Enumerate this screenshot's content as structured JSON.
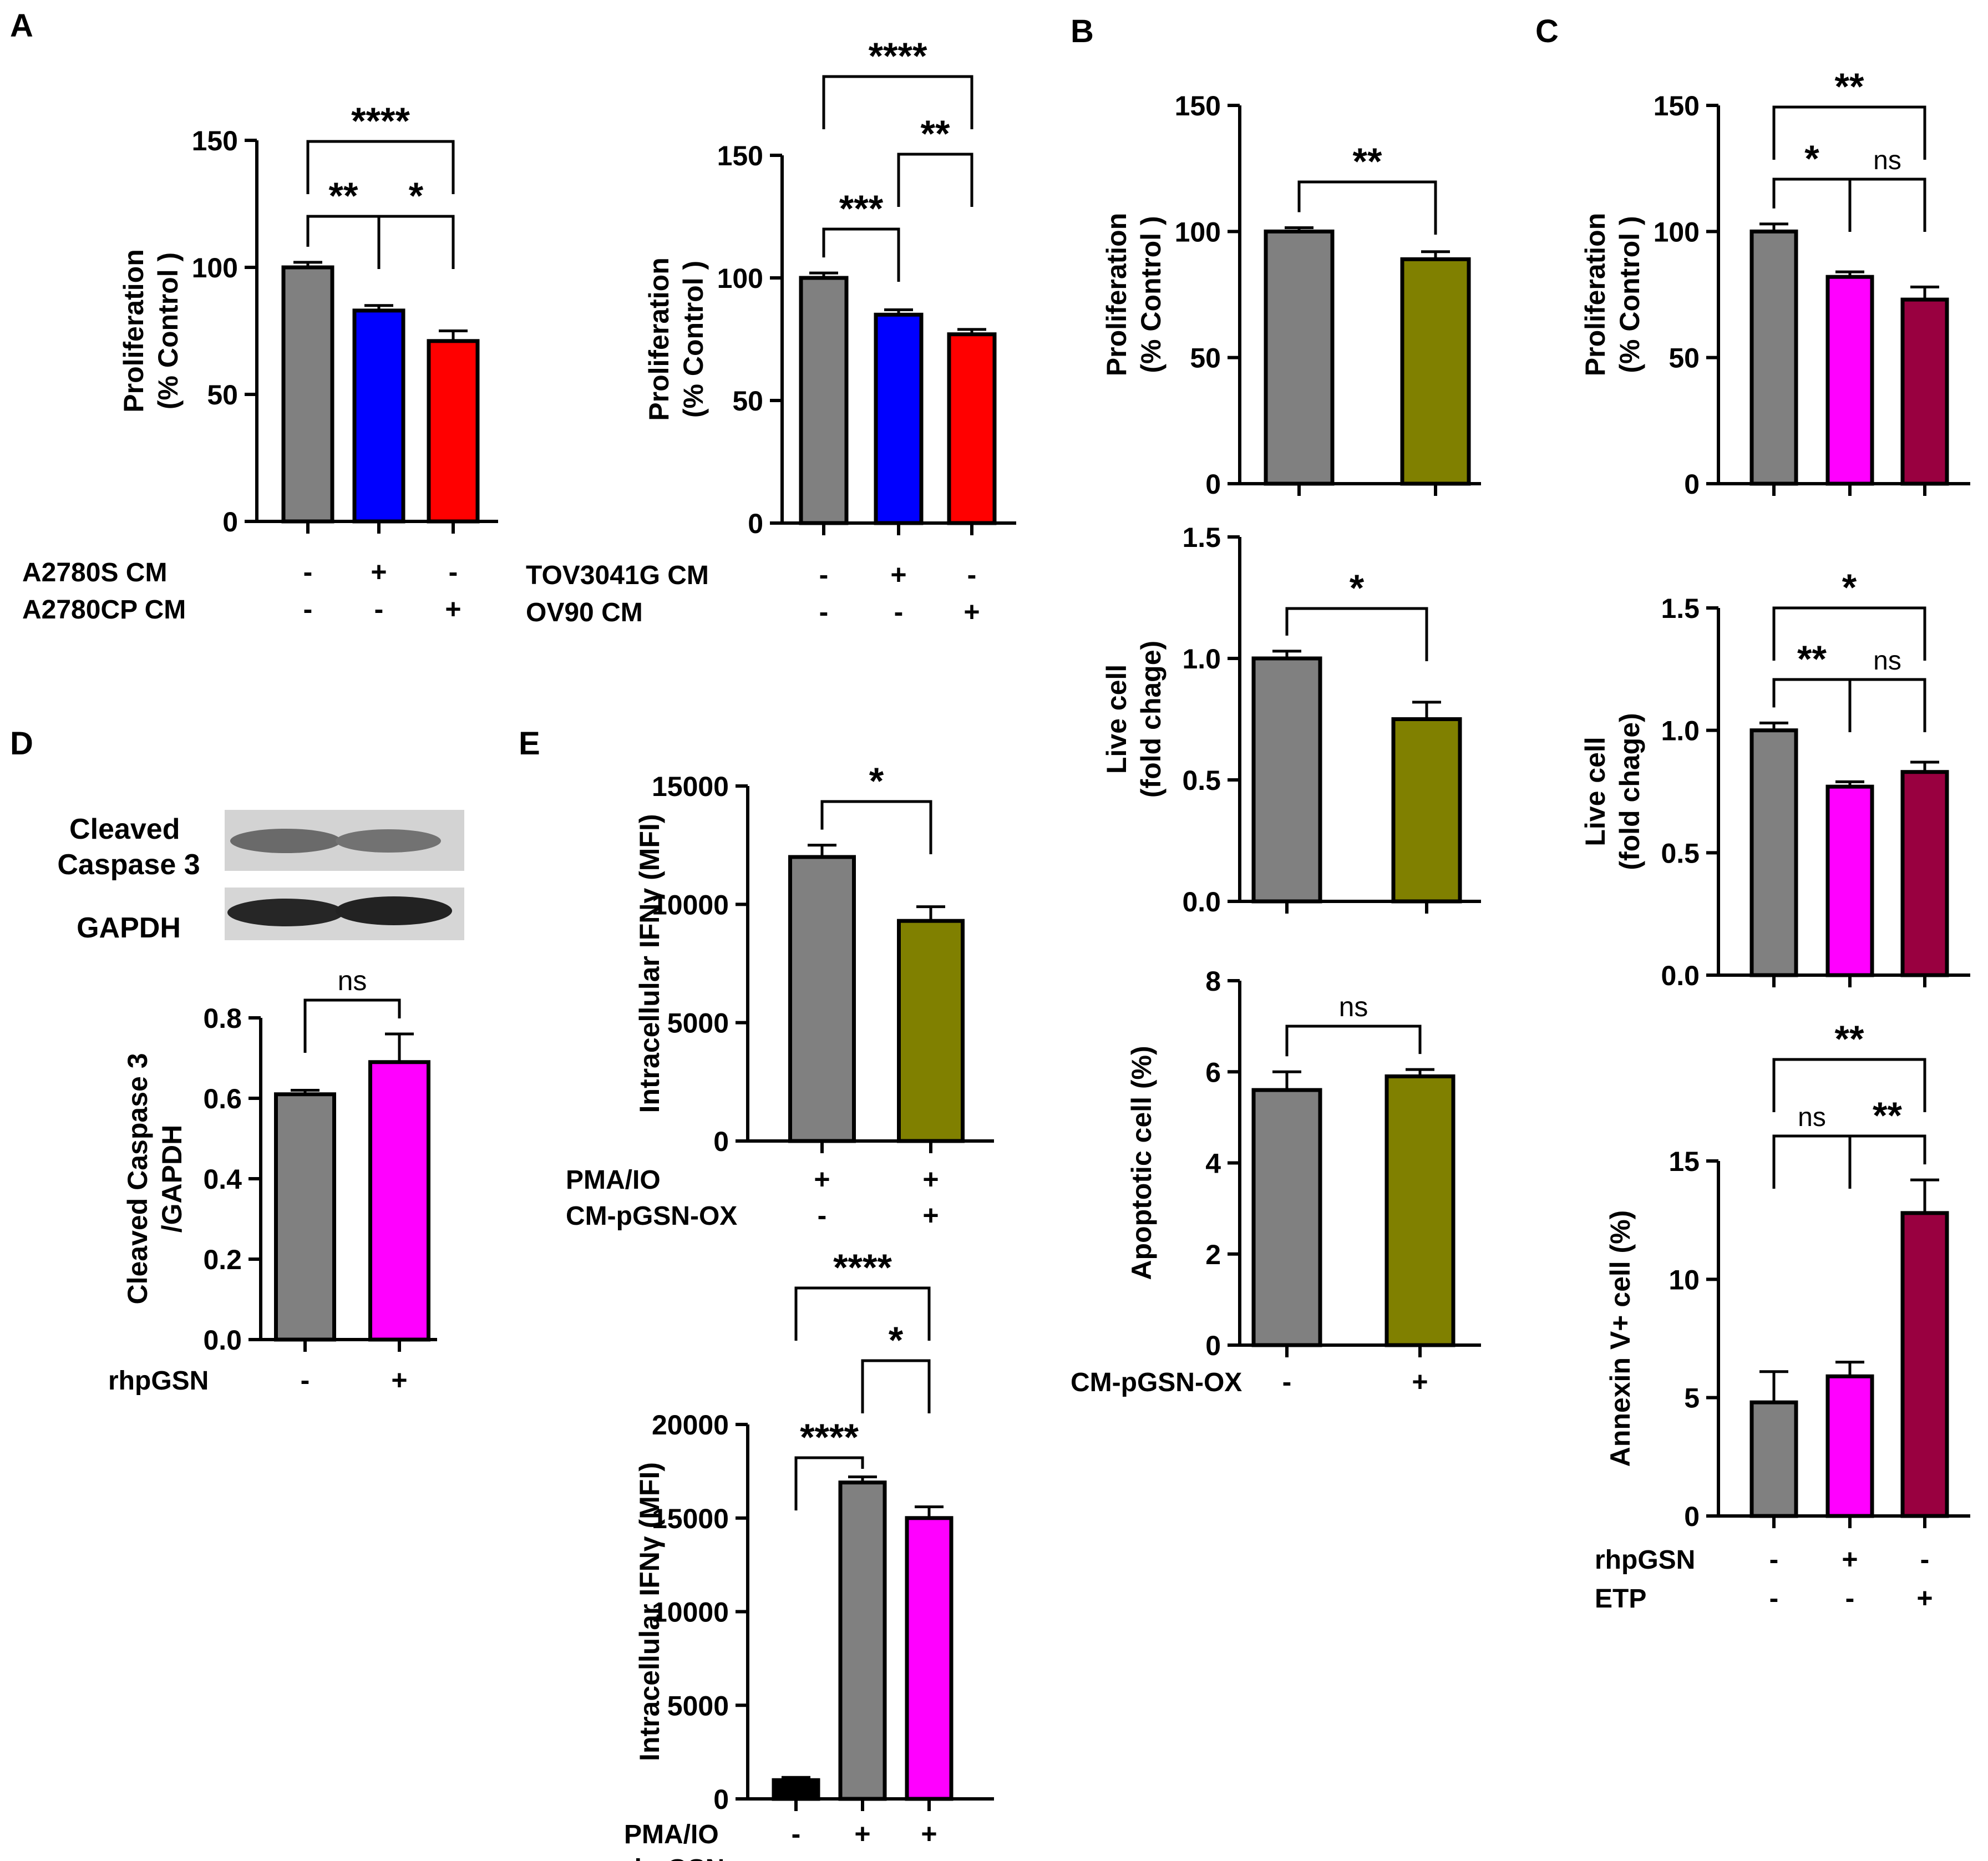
{
  "panel_letters": [
    "A",
    "B",
    "C",
    "D",
    "E"
  ],
  "blot": {
    "labels": [
      "Cleaved\nCaspase 3",
      "GAPDH"
    ]
  },
  "chart_data": [
    {
      "id": "A1",
      "panel": "A",
      "type": "bar",
      "ylabel": "Proliferation\n(% Control )",
      "ylim": [
        0,
        150
      ],
      "yticks": [
        0,
        50,
        100,
        150
      ],
      "ytick_labels": [
        "0",
        "50",
        "100",
        "150"
      ],
      "values": [
        100,
        83,
        71
      ],
      "errors": [
        2,
        2,
        4
      ],
      "colors": [
        "#808080",
        "#0000ff",
        "#ff0000"
      ],
      "conditions": [
        {
          "label": "A2780S CM",
          "signs": [
            "-",
            "+",
            "-"
          ]
        },
        {
          "label": "A2780CP CM",
          "signs": [
            "-",
            "-",
            "+"
          ]
        }
      ],
      "significance": [
        {
          "from": 0,
          "to": 1,
          "label": "**"
        },
        {
          "from": 1,
          "to": 2,
          "label": "*"
        },
        {
          "from": 0,
          "to": 2,
          "label": "****"
        }
      ]
    },
    {
      "id": "A2",
      "panel": "A",
      "type": "bar",
      "ylabel": "Proliferation\n(% Control )",
      "ylim": [
        0,
        150
      ],
      "yticks": [
        0,
        50,
        100,
        150
      ],
      "ytick_labels": [
        "0",
        "50",
        "100",
        "150"
      ],
      "values": [
        100,
        85,
        77
      ],
      "errors": [
        2,
        2,
        2
      ],
      "colors": [
        "#808080",
        "#0000ff",
        "#ff0000"
      ],
      "conditions": [
        {
          "label": "TOV3041G CM",
          "signs": [
            "-",
            "+",
            "-"
          ]
        },
        {
          "label": "OV90 CM",
          "signs": [
            "-",
            "-",
            "+"
          ]
        }
      ],
      "significance": [
        {
          "from": 0,
          "to": 1,
          "label": "***"
        },
        {
          "from": 1,
          "to": 2,
          "label": "**"
        },
        {
          "from": 0,
          "to": 2,
          "label": "****"
        }
      ]
    },
    {
      "id": "B1",
      "panel": "B",
      "type": "bar",
      "ylabel": "Proliferation\n(% Control )",
      "ylim": [
        0,
        150
      ],
      "yticks": [
        0,
        50,
        100,
        150
      ],
      "ytick_labels": [
        "0",
        "50",
        "100",
        "150"
      ],
      "values": [
        100,
        89
      ],
      "errors": [
        1.5,
        3
      ],
      "colors": [
        "#808080",
        "#808000"
      ],
      "conditions": [],
      "significance": [
        {
          "from": 0,
          "to": 1,
          "label": "**"
        }
      ]
    },
    {
      "id": "B2",
      "panel": "B",
      "type": "bar",
      "ylabel": "Live cell\n(fold chage)",
      "ylim": [
        0,
        1.5
      ],
      "yticks": [
        0,
        0.5,
        1.0,
        1.5
      ],
      "ytick_labels": [
        "0.0",
        "0.5",
        "1.0",
        "1.5"
      ],
      "values": [
        1.0,
        0.75
      ],
      "errors": [
        0.03,
        0.07
      ],
      "colors": [
        "#808080",
        "#808000"
      ],
      "conditions": [],
      "significance": [
        {
          "from": 0,
          "to": 1,
          "label": "*"
        }
      ]
    },
    {
      "id": "B3",
      "panel": "B",
      "type": "bar",
      "ylabel": "Apoptotic cell (%)",
      "ylim": [
        0,
        8
      ],
      "yticks": [
        0,
        2,
        4,
        6,
        8
      ],
      "ytick_labels": [
        "0",
        "2",
        "4",
        "6",
        "8"
      ],
      "values": [
        5.6,
        5.9
      ],
      "errors": [
        0.4,
        0.15
      ],
      "colors": [
        "#808080",
        "#808000"
      ],
      "conditions": [
        {
          "label": "CM-pGSN-OX",
          "signs": [
            "-",
            "+"
          ]
        }
      ],
      "significance": [
        {
          "from": 0,
          "to": 1,
          "label": "ns"
        }
      ]
    },
    {
      "id": "C1",
      "panel": "C",
      "type": "bar",
      "ylabel": "Proliferation\n(% Control )",
      "ylim": [
        0,
        150
      ],
      "yticks": [
        0,
        50,
        100,
        150
      ],
      "ytick_labels": [
        "0",
        "50",
        "100",
        "150"
      ],
      "values": [
        100,
        82,
        73
      ],
      "errors": [
        3,
        2,
        5
      ],
      "colors": [
        "#808080",
        "#ff00ff",
        "#990040"
      ],
      "conditions": [],
      "significance": [
        {
          "from": 0,
          "to": 1,
          "label": "*"
        },
        {
          "from": 1,
          "to": 2,
          "label": "ns"
        },
        {
          "from": 0,
          "to": 2,
          "label": "**"
        }
      ]
    },
    {
      "id": "C2",
      "panel": "C",
      "type": "bar",
      "ylabel": "Live cell\n(fold chage)",
      "ylim": [
        0,
        1.5
      ],
      "yticks": [
        0,
        0.5,
        1.0,
        1.5
      ],
      "ytick_labels": [
        "0.0",
        "0.5",
        "1.0",
        "1.5"
      ],
      "values": [
        1.0,
        0.77,
        0.83
      ],
      "errors": [
        0.03,
        0.02,
        0.04
      ],
      "colors": [
        "#808080",
        "#ff00ff",
        "#990040"
      ],
      "conditions": [],
      "significance": [
        {
          "from": 0,
          "to": 1,
          "label": "**"
        },
        {
          "from": 1,
          "to": 2,
          "label": "ns"
        },
        {
          "from": 0,
          "to": 2,
          "label": "*"
        }
      ]
    },
    {
      "id": "C3",
      "panel": "C",
      "type": "bar",
      "ylabel": "Annexin V+ cell (%)",
      "ylim": [
        0,
        15
      ],
      "yticks": [
        0,
        5,
        10,
        15
      ],
      "ytick_labels": [
        "0",
        "5",
        "10",
        "15"
      ],
      "values": [
        4.8,
        5.9,
        12.8
      ],
      "errors": [
        1.3,
        0.6,
        1.4
      ],
      "colors": [
        "#808080",
        "#ff00ff",
        "#990040"
      ],
      "conditions": [
        {
          "label": "rhpGSN",
          "signs": [
            "-",
            "+",
            "-"
          ]
        },
        {
          "label": "ETP",
          "signs": [
            "-",
            "-",
            "+"
          ]
        }
      ],
      "significance": [
        {
          "from": 0,
          "to": 1,
          "label": "ns"
        },
        {
          "from": 1,
          "to": 2,
          "label": "**"
        },
        {
          "from": 0,
          "to": 2,
          "label": "**"
        }
      ]
    },
    {
      "id": "D1",
      "panel": "D",
      "type": "bar",
      "ylabel": "Cleaved Caspase 3\n/GAPDH",
      "ylim": [
        0,
        0.8
      ],
      "yticks": [
        0,
        0.2,
        0.4,
        0.6,
        0.8
      ],
      "ytick_labels": [
        "0.0",
        "0.2",
        "0.4",
        "0.6",
        "0.8"
      ],
      "values": [
        0.61,
        0.69
      ],
      "errors": [
        0.01,
        0.07
      ],
      "colors": [
        "#808080",
        "#ff00ff"
      ],
      "conditions": [
        {
          "label": "rhpGSN",
          "signs": [
            "-",
            "+"
          ]
        }
      ],
      "significance": [
        {
          "from": 0,
          "to": 1,
          "label": "ns"
        }
      ]
    },
    {
      "id": "E1",
      "panel": "E",
      "type": "bar",
      "ylabel": "Intracellular IFNγ (MFI)",
      "ylim": [
        0,
        15000
      ],
      "yticks": [
        0,
        5000,
        10000,
        15000
      ],
      "ytick_labels": [
        "0",
        "5000",
        "10000",
        "15000"
      ],
      "values": [
        12000,
        9300
      ],
      "errors": [
        500,
        600
      ],
      "colors": [
        "#808080",
        "#808000"
      ],
      "conditions": [
        {
          "label": "PMA/IO",
          "signs": [
            "+",
            "+"
          ]
        },
        {
          "label": "CM-pGSN-OX",
          "signs": [
            "-",
            "+"
          ]
        }
      ],
      "significance": [
        {
          "from": 0,
          "to": 1,
          "label": "*"
        }
      ]
    },
    {
      "id": "E2",
      "panel": "E",
      "type": "bar",
      "ylabel": "Intracellular IFNγ (MFI)",
      "ylim": [
        0,
        20000
      ],
      "yticks": [
        0,
        5000,
        10000,
        15000,
        20000
      ],
      "ytick_labels": [
        "0",
        "5000",
        "10000",
        "15000",
        "20000"
      ],
      "values": [
        1000,
        16900,
        15000
      ],
      "errors": [
        150,
        300,
        600
      ],
      "colors": [
        "#000000",
        "#808080",
        "#ff00ff"
      ],
      "conditions": [
        {
          "label": "PMA/IO",
          "signs": [
            "-",
            "+",
            "+"
          ]
        },
        {
          "label": "rhpGSN",
          "signs": [
            "-",
            "-",
            "+"
          ]
        }
      ],
      "significance": [
        {
          "from": 0,
          "to": 1,
          "label": "****"
        },
        {
          "from": 1,
          "to": 2,
          "label": "*"
        },
        {
          "from": 0,
          "to": 2,
          "label": "****"
        }
      ]
    }
  ]
}
